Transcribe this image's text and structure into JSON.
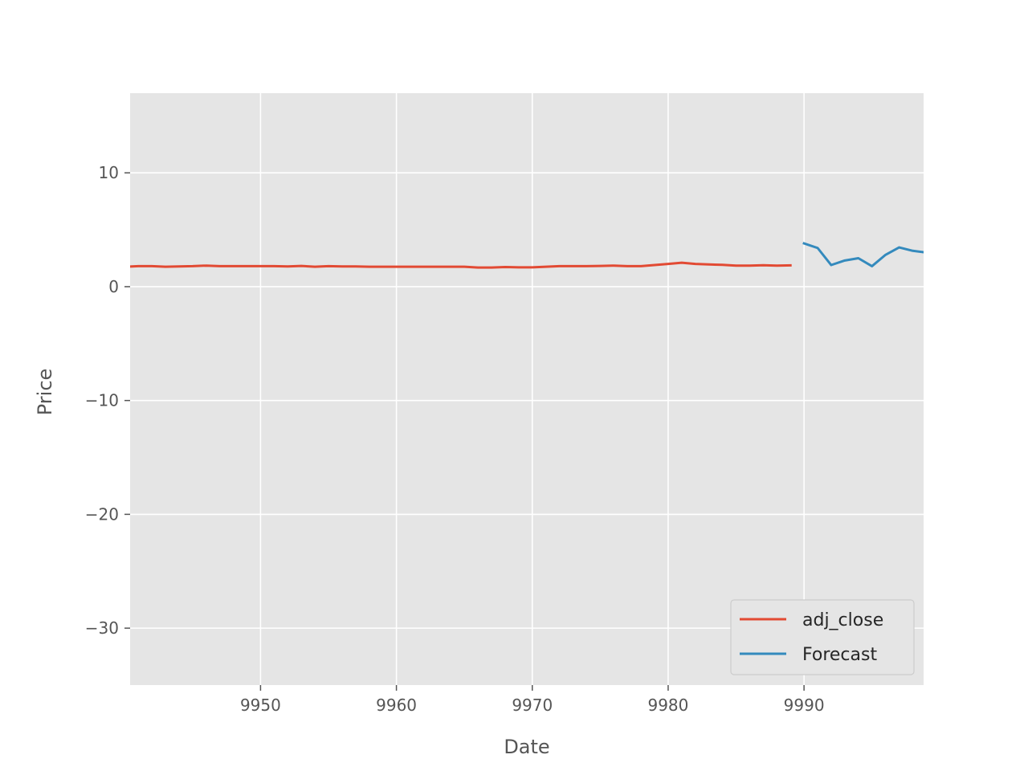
{
  "chart_data": {
    "type": "line",
    "title": "",
    "xlabel": "Date",
    "ylabel": "Price",
    "xlim": [
      9940.4,
      9998.8
    ],
    "ylim": [
      -35,
      17
    ],
    "xticks": [
      9950,
      9960,
      9970,
      9980,
      9990
    ],
    "yticks": [
      -30,
      -20,
      -10,
      0,
      10
    ],
    "grid": true,
    "legend_position": "lower-right",
    "series": [
      {
        "name": "adj_close",
        "color": "#E24A33",
        "x": [
          9940,
          9941,
          9942,
          9943,
          9944,
          9945,
          9946,
          9947,
          9948,
          9949,
          9950,
          9951,
          9952,
          9953,
          9954,
          9955,
          9956,
          9957,
          9958,
          9959,
          9960,
          9961,
          9962,
          9963,
          9964,
          9965,
          9966,
          9967,
          9968,
          9969,
          9970,
          9971,
          9972,
          9973,
          9974,
          9975,
          9976,
          9977,
          9978,
          9979,
          9980,
          9981,
          9982,
          9983,
          9984,
          9985,
          9986,
          9987,
          9988,
          9989
        ],
        "y": [
          1.75,
          1.8,
          1.8,
          1.75,
          1.78,
          1.8,
          1.85,
          1.8,
          1.8,
          1.8,
          1.8,
          1.8,
          1.78,
          1.82,
          1.75,
          1.8,
          1.78,
          1.78,
          1.75,
          1.75,
          1.75,
          1.75,
          1.75,
          1.75,
          1.75,
          1.75,
          1.68,
          1.68,
          1.72,
          1.7,
          1.7,
          1.75,
          1.8,
          1.8,
          1.8,
          1.82,
          1.85,
          1.8,
          1.8,
          1.9,
          2.0,
          2.1,
          2.0,
          1.95,
          1.92,
          1.85,
          1.85,
          1.88,
          1.85,
          1.87
        ]
      },
      {
        "name": "Forecast",
        "color": "#348ABD",
        "x": [
          9990,
          9991,
          9992,
          9993,
          9994,
          9995,
          9996,
          9997,
          9998,
          9999
        ],
        "y": [
          3.8,
          3.4,
          1.9,
          2.3,
          2.5,
          1.8,
          2.8,
          3.45,
          3.15,
          3.0
        ]
      }
    ]
  }
}
